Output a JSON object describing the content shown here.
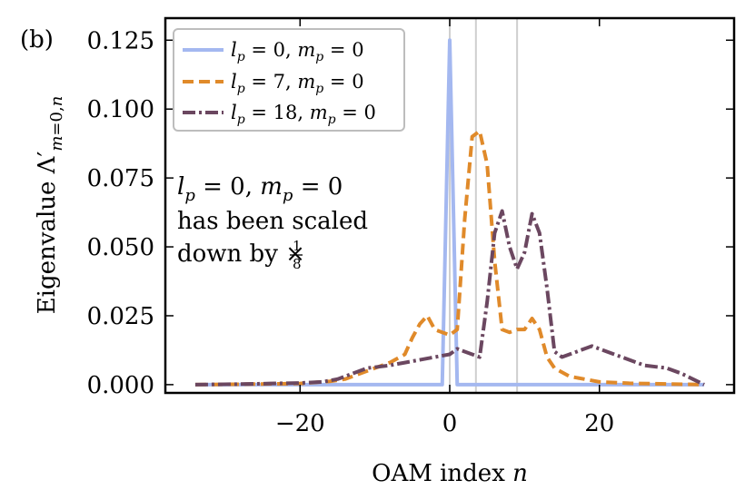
{
  "chart_data": {
    "type": "line",
    "panel_label": "(b)",
    "xlabel": "OAM index n",
    "ylabel": "Eigenvalue Λ′ m=0,n",
    "xlim": [
      -38,
      38
    ],
    "ylim": [
      -0.003,
      0.133
    ],
    "x_ticks": [
      -20,
      0,
      20
    ],
    "x_tick_labels": [
      "−20",
      "0",
      "20"
    ],
    "y_ticks": [
      0.0,
      0.025,
      0.05,
      0.075,
      0.1,
      0.125
    ],
    "y_tick_labels": [
      "0.000",
      "0.025",
      "0.050",
      "0.075",
      "0.100",
      "0.125"
    ],
    "vlines": [
      0,
      3.5,
      9
    ],
    "legend_position": "top-left",
    "annotation": [
      "l_p = 0, m_p = 0",
      "has been scaled",
      "down by × 1/8"
    ],
    "series": [
      {
        "name": "l_p = 0, m_p = 0",
        "style": "solid",
        "color": "#a4b8f0",
        "points": [
          [
            -34,
            0
          ],
          [
            -1,
            0
          ],
          [
            0,
            0.125
          ],
          [
            1,
            0
          ],
          [
            34,
            0
          ]
        ]
      },
      {
        "name": "l_p = 7, m_p = 0",
        "style": "dashed",
        "color": "#e08a2a",
        "points": [
          [
            -34,
            0
          ],
          [
            -26,
            0.0002
          ],
          [
            -20,
            0.0004
          ],
          [
            -16,
            0.0012
          ],
          [
            -14,
            0.002
          ],
          [
            -12,
            0.004
          ],
          [
            -10,
            0.006
          ],
          [
            -8,
            0.008
          ],
          [
            -6,
            0.011
          ],
          [
            -5,
            0.017
          ],
          [
            -4,
            0.022
          ],
          [
            -3,
            0.025
          ],
          [
            -2,
            0.02
          ],
          [
            -1,
            0.019
          ],
          [
            0,
            0.018
          ],
          [
            1,
            0.02
          ],
          [
            2,
            0.06
          ],
          [
            3,
            0.09
          ],
          [
            4,
            0.092
          ],
          [
            5,
            0.08
          ],
          [
            6,
            0.045
          ],
          [
            7,
            0.02
          ],
          [
            8,
            0.019
          ],
          [
            9,
            0.02
          ],
          [
            10,
            0.02
          ],
          [
            11,
            0.024
          ],
          [
            12,
            0.02
          ],
          [
            13,
            0.01
          ],
          [
            14,
            0.006
          ],
          [
            16,
            0.003
          ],
          [
            18,
            0.002
          ],
          [
            20,
            0.001
          ],
          [
            24,
            0.0005
          ],
          [
            34,
            0
          ]
        ]
      },
      {
        "name": "l_p = 18, m_p = 0",
        "style": "dashdot",
        "color": "#6b4760",
        "points": [
          [
            -34,
            0
          ],
          [
            -28,
            0.0002
          ],
          [
            -24,
            0.0004
          ],
          [
            -20,
            0.0006
          ],
          [
            -17,
            0.001
          ],
          [
            -15,
            0.002
          ],
          [
            -13,
            0.004
          ],
          [
            -11,
            0.006
          ],
          [
            -8,
            0.007
          ],
          [
            -6,
            0.008
          ],
          [
            -4,
            0.009
          ],
          [
            -2,
            0.01
          ],
          [
            0,
            0.011
          ],
          [
            1,
            0.013
          ],
          [
            2,
            0.012
          ],
          [
            3,
            0.011
          ],
          [
            4,
            0.01
          ],
          [
            5,
            0.03
          ],
          [
            6,
            0.055
          ],
          [
            7,
            0.063
          ],
          [
            8,
            0.05
          ],
          [
            9,
            0.042
          ],
          [
            10,
            0.048
          ],
          [
            11,
            0.062
          ],
          [
            12,
            0.055
          ],
          [
            13,
            0.035
          ],
          [
            14,
            0.012
          ],
          [
            15,
            0.01
          ],
          [
            17,
            0.012
          ],
          [
            19,
            0.014
          ],
          [
            21,
            0.012
          ],
          [
            23,
            0.01
          ],
          [
            26,
            0.007
          ],
          [
            29,
            0.006
          ],
          [
            31,
            0.004
          ],
          [
            34,
            0
          ]
        ]
      }
    ]
  }
}
